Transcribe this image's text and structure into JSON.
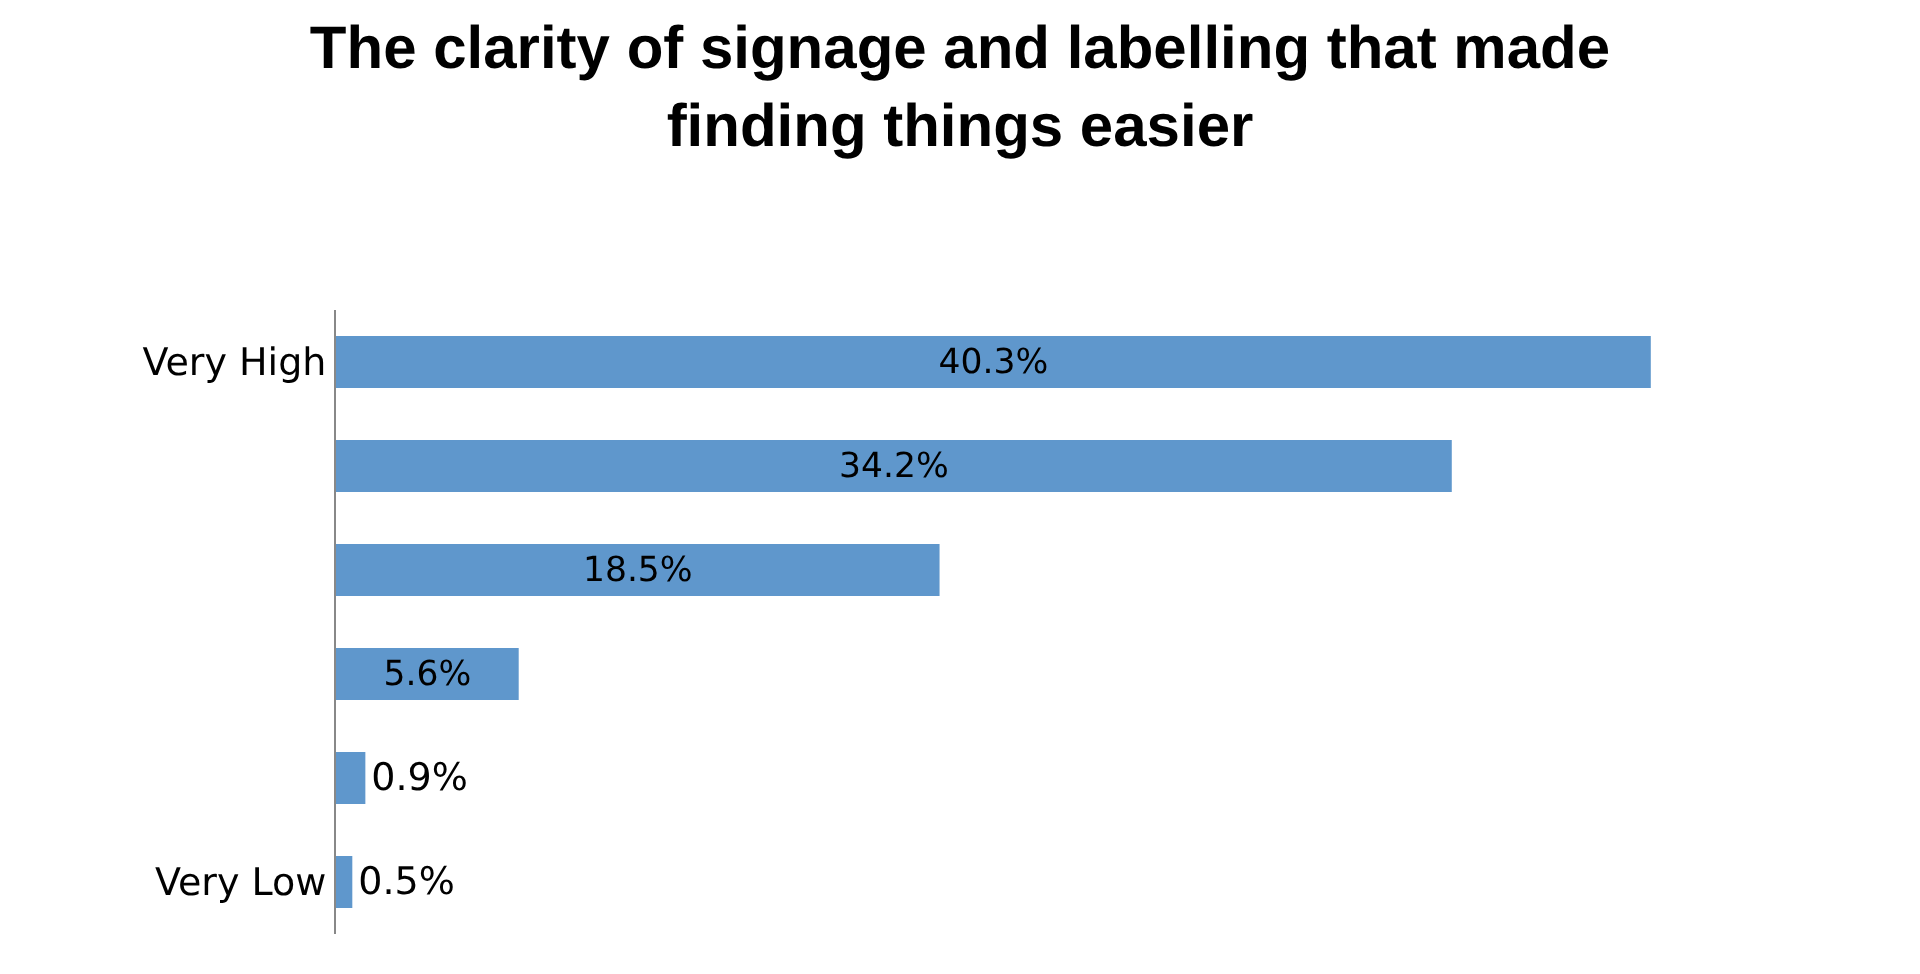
{
  "chart_data": {
    "type": "bar",
    "orientation": "horizontal",
    "title": "The clarity of signage and labelling that made finding things easier",
    "categories": [
      "Very High",
      null,
      null,
      null,
      null,
      "Very Low"
    ],
    "values": [
      40.3,
      34.2,
      18.5,
      5.6,
      0.9,
      0.5
    ],
    "value_labels": [
      "40.3%",
      "34.2%",
      "18.5%",
      "5.6%",
      "0.9%",
      "0.5%"
    ],
    "color": "#5f97cc",
    "grid": false,
    "legend": false
  }
}
